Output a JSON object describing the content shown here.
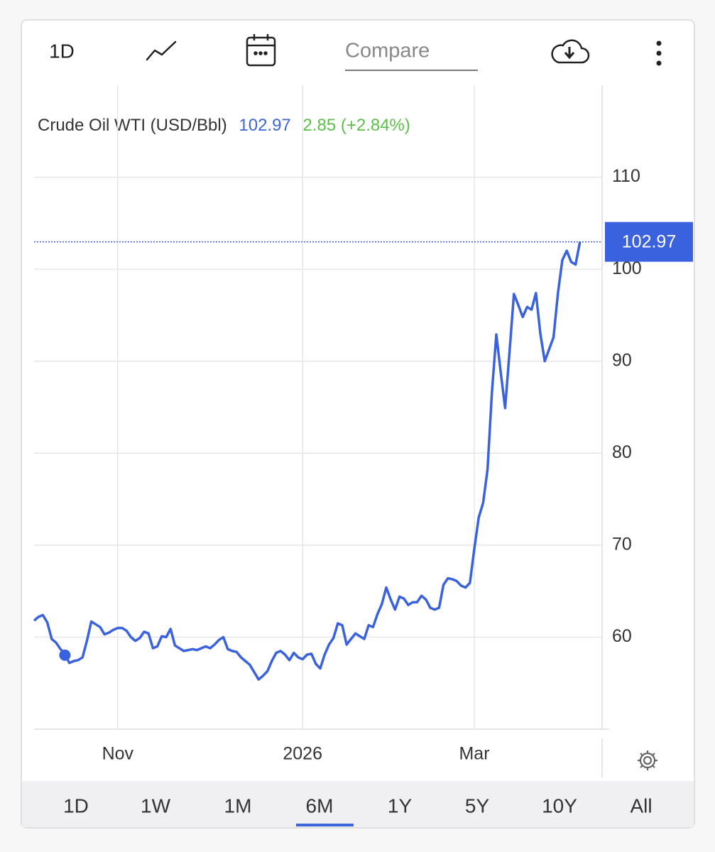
{
  "toolbar": {
    "interval": "1D",
    "compare": "Compare"
  },
  "chart_data": {
    "type": "line",
    "series_name": "Crude Oil WTI (USD/Bbl)",
    "price": 102.97,
    "change": "2.85 (+2.84%)",
    "color": "#3a62de",
    "grid": true,
    "categories": [
      null,
      null,
      null,
      null,
      null,
      null,
      null,
      null,
      null,
      null,
      null,
      null,
      null,
      null,
      null,
      null,
      null,
      null,
      null,
      "Nov",
      null,
      null,
      null,
      null,
      null,
      null,
      null,
      null,
      null,
      null,
      null,
      null,
      null,
      null,
      null,
      null,
      null,
      null,
      null,
      null,
      null,
      null,
      null,
      null,
      null,
      null,
      null,
      null,
      null,
      null,
      null,
      null,
      null,
      null,
      null,
      null,
      null,
      null,
      null,
      null,
      null,
      "2026",
      null,
      null,
      null,
      null,
      null,
      null,
      null,
      null,
      null,
      null,
      null,
      null,
      null,
      null,
      null,
      null,
      null,
      null,
      null,
      null,
      null,
      null,
      null,
      null,
      null,
      null,
      null,
      null,
      null,
      null,
      null,
      null,
      null,
      null,
      null,
      null,
      null,
      null,
      "Mar",
      null,
      null,
      null,
      null,
      null,
      null,
      null,
      null,
      null,
      null,
      null,
      null,
      null,
      null,
      null,
      null,
      null,
      null,
      null,
      null,
      null,
      null,
      null,
      null
    ],
    "values": [
      61.8,
      62.2,
      62.4,
      61.6,
      59.8,
      59.4,
      58.7,
      58.2,
      57.2,
      57.4,
      57.5,
      57.8,
      59.6,
      61.7,
      61.4,
      61.1,
      60.3,
      60.5,
      60.8,
      61.0,
      61.0,
      60.7,
      60.0,
      59.6,
      59.9,
      60.6,
      60.4,
      58.8,
      59.0,
      60.1,
      60.0,
      60.9,
      59.1,
      58.8,
      58.5,
      58.6,
      58.7,
      58.6,
      58.8,
      59.0,
      58.8,
      59.2,
      59.7,
      60.0,
      58.7,
      58.5,
      58.4,
      57.8,
      57.4,
      57.0,
      56.2,
      55.4,
      55.8,
      56.3,
      57.4,
      58.3,
      58.5,
      58.1,
      57.5,
      58.3,
      57.8,
      57.6,
      58.1,
      58.2,
      57.1,
      56.6,
      58.1,
      59.2,
      59.9,
      61.5,
      61.3,
      59.2,
      59.8,
      60.4,
      60.1,
      59.8,
      61.3,
      61.1,
      62.5,
      63.6,
      65.4,
      64.1,
      63.0,
      64.4,
      64.2,
      63.5,
      63.8,
      63.8,
      64.5,
      64.1,
      63.2,
      63.0,
      63.2,
      65.7,
      66.4,
      66.3,
      66.1,
      65.6,
      65.4,
      65.9,
      69.6,
      73.0,
      74.6,
      78.2,
      86.6,
      92.9,
      88.8,
      84.9,
      91.0,
      97.3,
      96.1,
      94.8,
      95.9,
      95.6,
      97.4,
      93.0,
      90.0,
      91.3,
      92.6,
      97.4,
      101.0,
      102.0,
      100.8,
      100.5,
      102.97
    ],
    "ylim": [
      50,
      120
    ],
    "yticks": [
      60,
      70,
      80,
      90,
      100,
      110
    ]
  },
  "ranges": [
    "1D",
    "1W",
    "1M",
    "6M",
    "1Y",
    "5Y",
    "10Y",
    "All"
  ],
  "active_range": "6M"
}
